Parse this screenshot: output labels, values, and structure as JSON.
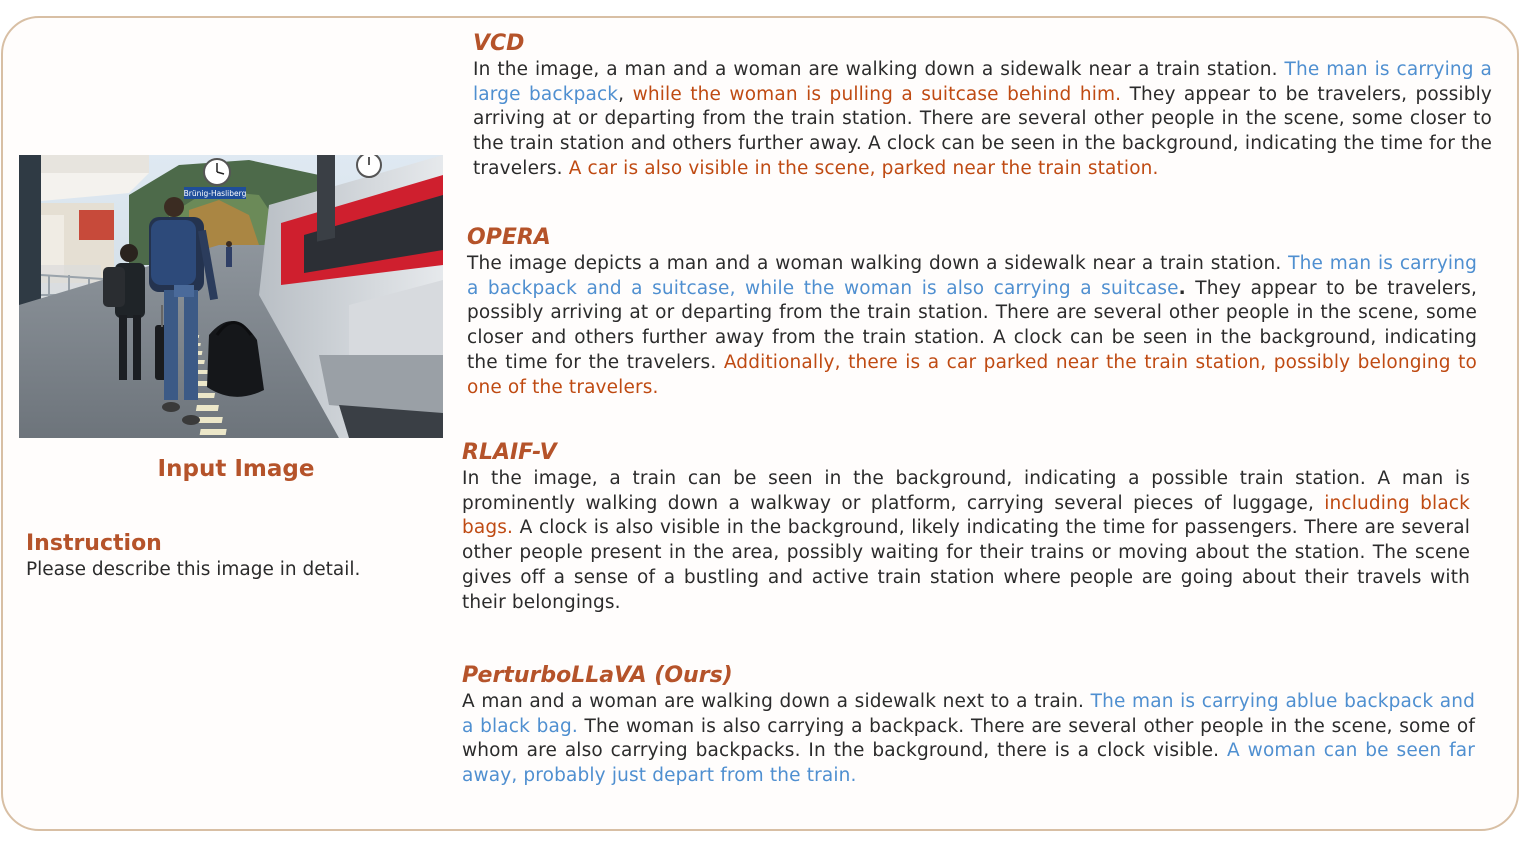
{
  "colors": {
    "border": "#d8bfa4",
    "heading": "#b5532a",
    "correct_highlight": "#4f8fd0",
    "hallucination_highlight": "#bf4a12",
    "body_text": "#2b2b2b"
  },
  "left_panel": {
    "image_alt": "train-station-photo",
    "input_label": "Input Image",
    "instruction_title": "Instruction",
    "instruction_text": "Please describe this image in detail."
  },
  "photo_signs": {
    "station_sign": "Brünig-Hasliberg"
  },
  "models": {
    "vcd": {
      "title": "VCD",
      "seg1": "In the image, a man and a woman are walking down a sidewalk near a train station. ",
      "seg2": "The man is carrying a large backpack",
      "seg3": ", ",
      "seg4": "while the woman is pulling a suitcase behind him.",
      "seg5": " They appear to be travelers, possibly arriving at or departing from the train station. There are several other people in the scene, some closer to the train station and others further away. A clock can be seen in the background, indicating the time for the travelers. ",
      "seg6": "A car is also visible in the scene, parked near the train station."
    },
    "opera": {
      "title": "OPERA",
      "seg1": "The image depicts a man and a woman walking down a sidewalk near a train station. ",
      "seg2": "The man is carrying a backpack and a suitcase, while the woman is also carrying a suitcase",
      "seg3": ".",
      "seg4": " They appear to be travelers, possibly arriving at or departing from the train station. There are several other people in the scene, some closer and others further away from the train station. A clock can be seen in the background, indicating the time for the travelers. ",
      "seg5": "Additionally, there is a car parked near the train station, possibly belonging to one of the travelers."
    },
    "rlaif": {
      "title": "RLAIF-V",
      "seg1": "In the image, a train can be seen in the background, indicating a possible train station. A man is prominently walking down a walkway or platform, carrying several pieces of luggage, ",
      "seg2": "including black bags.",
      "seg3": " A clock is also visible in the background, likely indicating the time for passengers. There are several other people present in the area, possibly waiting for their trains or moving about the station. The scene gives off a sense of a bustling and active train station where people are going about their travels with their belongings."
    },
    "ours": {
      "title": "PerturboLLaVA (Ours)",
      "seg1": "A man and a woman are walking down a sidewalk next to a train. ",
      "seg2": "The man is carrying ablue backpack and a black bag.",
      "seg3": " The woman is also carrying a backpack. There are several other people in the scene, some of whom are also carrying backpacks. In the background, there is a clock visible. ",
      "seg4": "A woman can be seen far away, probably just depart from the train."
    }
  }
}
